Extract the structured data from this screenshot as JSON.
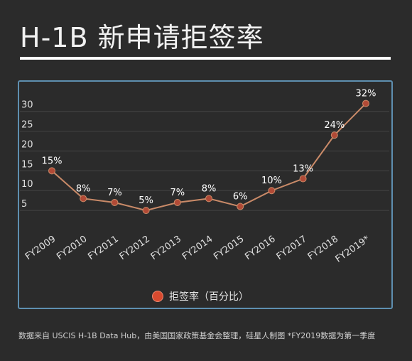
{
  "page": {
    "title": "H-1B 新申请拒签率",
    "footnote": "数据来自 USCIS H-1B Data Hub，由美国国家政策基金会整理，硅星人制图 *FY2019数据为第一季度"
  },
  "colors": {
    "background": "#2b2b2b",
    "panel_border": "#5e8fb0",
    "line": "#c98a68",
    "marker": "#b14a36",
    "gridline": "#444444",
    "legend_marker": "#d84a2f"
  },
  "chart_data": {
    "type": "line",
    "categories": [
      "FY2009",
      "FY2010",
      "FY2011",
      "FY2012",
      "FY2013",
      "FY2014",
      "FY2015",
      "FY2016",
      "FY2017",
      "FY2018",
      "FY2019*"
    ],
    "series": [
      {
        "name": "拒签率（百分比）",
        "values": [
          15,
          8,
          7,
          5,
          7,
          8,
          6,
          10,
          13,
          24,
          32
        ],
        "data_labels": [
          "15%",
          "8%",
          "7%",
          "5%",
          "7%",
          "8%",
          "6%",
          "10%",
          "13%",
          "24%",
          "32%"
        ]
      }
    ],
    "yticks": [
      5,
      10,
      15,
      20,
      25,
      30
    ],
    "ylim": [
      0,
      33
    ],
    "grid": true,
    "legend": "bottom-center",
    "title": "",
    "xlabel": "",
    "ylabel": ""
  }
}
